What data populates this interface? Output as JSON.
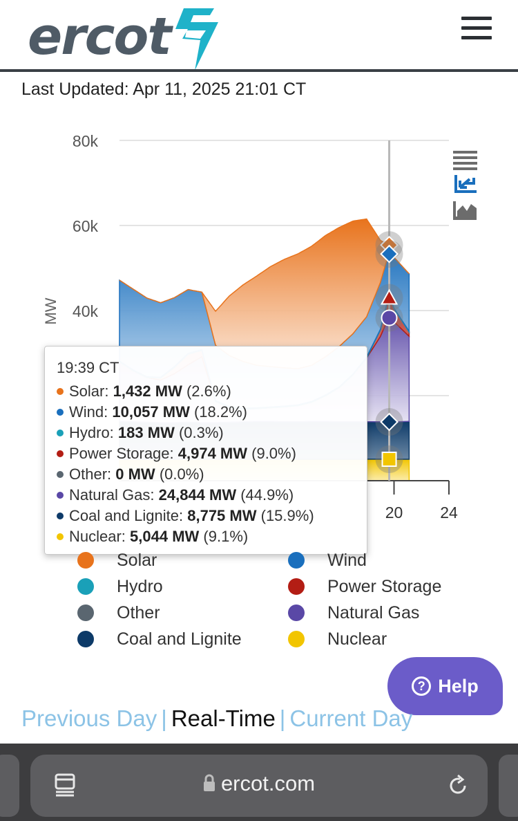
{
  "header": {
    "logo_text": "ercot",
    "menu_icon": "hamburger-menu-icon"
  },
  "last_updated": "Last Updated: Apr 11, 2025 21:01 CT",
  "chart_data": {
    "type": "area",
    "ylabel": "MW",
    "y_ticks": [
      "80k",
      "60k",
      "40k"
    ],
    "ylim": [
      0,
      80000
    ],
    "x_ticks": [
      "20",
      "24"
    ],
    "xlim_hours": [
      0,
      24
    ],
    "grid": true,
    "hover_time_hours": 19.65,
    "series": [
      {
        "name": "Nuclear",
        "color": "#f2c500",
        "x": [
          0,
          1,
          2,
          3,
          4,
          5,
          6,
          7,
          8,
          9,
          10,
          11,
          12,
          13,
          14,
          15,
          16,
          17,
          18,
          19,
          19.65,
          20,
          21.1
        ],
        "values": [
          5050,
          5050,
          5050,
          5050,
          5050,
          5050,
          5050,
          5050,
          5050,
          5050,
          5050,
          5050,
          5050,
          5050,
          5050,
          5050,
          5050,
          5050,
          5050,
          5050,
          5044,
          5044,
          5044
        ]
      },
      {
        "name": "Coal and Lignite",
        "color": "#0d3a68",
        "x": [
          0,
          1,
          2,
          3,
          4,
          5,
          6,
          7,
          8,
          9,
          10,
          11,
          12,
          13,
          14,
          15,
          16,
          17,
          18,
          19,
          19.65,
          20,
          21.1
        ],
        "values": [
          8900,
          8800,
          8700,
          8600,
          8600,
          8700,
          8600,
          8600,
          8700,
          8800,
          8900,
          8900,
          8800,
          8800,
          8900,
          8900,
          8800,
          8800,
          8800,
          8800,
          8775,
          8800,
          8900
        ]
      },
      {
        "name": "Natural Gas",
        "color": "#5a48a6",
        "x": [
          0,
          1,
          2,
          3,
          4,
          5,
          6,
          7,
          8,
          9,
          10,
          11,
          12,
          13,
          14,
          15,
          16,
          17,
          18,
          19,
          19.65,
          20,
          21.1
        ],
        "values": [
          14000,
          12000,
          10500,
          10000,
          11500,
          13500,
          15500,
          5000,
          3500,
          3000,
          3000,
          3200,
          3500,
          3800,
          4500,
          6000,
          8000,
          11000,
          15000,
          20000,
          24844,
          23500,
          20000
        ]
      },
      {
        "name": "Power Storage",
        "color": "#b31d14",
        "x": [
          0,
          1,
          2,
          3,
          4,
          5,
          6,
          7,
          8,
          9,
          10,
          11,
          12,
          13,
          14,
          15,
          16,
          17,
          18,
          19,
          19.65,
          20,
          21.1
        ],
        "values": [
          0,
          0,
          0,
          500,
          1500,
          2500,
          1500,
          0,
          0,
          0,
          0,
          0,
          0,
          0,
          0,
          0,
          0,
          0,
          0,
          1500,
          4974,
          3000,
          1000
        ]
      },
      {
        "name": "Other",
        "color": "#5a6670",
        "x": [
          0,
          21.1
        ],
        "values": [
          0,
          0
        ]
      },
      {
        "name": "Hydro",
        "color": "#1aa0b8",
        "x": [
          0,
          21.1
        ],
        "values": [
          180,
          183
        ]
      },
      {
        "name": "Wind",
        "color": "#1a6fbd",
        "x": [
          0,
          1,
          2,
          3,
          4,
          5,
          6,
          7,
          8,
          9,
          10,
          11,
          12,
          13,
          14,
          15,
          16,
          17,
          18,
          19,
          19.65,
          20,
          21.1
        ],
        "values": [
          19000,
          19000,
          18500,
          17500,
          16200,
          15000,
          13500,
          13000,
          12000,
          11000,
          10000,
          9500,
          9000,
          8500,
          8500,
          9000,
          9500,
          9500,
          9500,
          11000,
          10057,
          12000,
          13500
        ]
      },
      {
        "name": "Solar",
        "color": "#e8731c",
        "x": [
          0,
          1,
          2,
          3,
          4,
          5,
          6,
          7,
          8,
          9,
          10,
          11,
          12,
          13,
          14,
          15,
          16,
          17,
          18,
          19,
          19.65,
          20,
          21.1
        ],
        "values": [
          0,
          0,
          0,
          0,
          0,
          0,
          0,
          8000,
          14000,
          18000,
          21000,
          23500,
          25500,
          27000,
          28000,
          28500,
          28000,
          26500,
          23000,
          10000,
          1432,
          0,
          0
        ]
      }
    ]
  },
  "toolbar": {
    "icons": [
      "menu-lines-icon",
      "zoom-reset-icon",
      "area-chart-icon"
    ]
  },
  "tooltip": {
    "time": "19:39 CT",
    "rows": [
      {
        "label": "Solar:",
        "value": "1,432 MW",
        "pct": "(2.6%)",
        "color": "#e8731c"
      },
      {
        "label": "Wind:",
        "value": "10,057 MW",
        "pct": "(18.2%)",
        "color": "#1a6fbd"
      },
      {
        "label": "Hydro:",
        "value": "183 MW",
        "pct": "(0.3%)",
        "color": "#1aa0b8"
      },
      {
        "label": "Power Storage:",
        "value": "4,974 MW",
        "pct": "(9.0%)",
        "color": "#b31d14"
      },
      {
        "label": "Other:",
        "value": "0 MW",
        "pct": "(0.0%)",
        "color": "#5a6670"
      },
      {
        "label": "Natural Gas:",
        "value": "24,844 MW",
        "pct": "(44.9%)",
        "color": "#5a48a6"
      },
      {
        "label": "Coal and Lignite:",
        "value": "8,775 MW",
        "pct": "(15.9%)",
        "color": "#0d3a68"
      },
      {
        "label": "Nuclear:",
        "value": "5,044 MW",
        "pct": "(9.1%)",
        "color": "#f2c500"
      }
    ]
  },
  "legend": [
    {
      "label": "Solar",
      "color": "#e8731c"
    },
    {
      "label": "Wind",
      "color": "#1a6fbd"
    },
    {
      "label": "Hydro",
      "color": "#1aa0b8"
    },
    {
      "label": "Power Storage",
      "color": "#b31d14"
    },
    {
      "label": "Other",
      "color": "#5a6670"
    },
    {
      "label": "Natural Gas",
      "color": "#5a48a6"
    },
    {
      "label": "Coal and Lignite",
      "color": "#0d3a68"
    },
    {
      "label": "Nuclear",
      "color": "#f2c500"
    }
  ],
  "help": {
    "label": "Help"
  },
  "day_nav": {
    "previous": "Previous Day",
    "separator": "|",
    "realtime": "Real-Time",
    "current": "Current Day"
  },
  "browser": {
    "url": "ercot.com"
  }
}
